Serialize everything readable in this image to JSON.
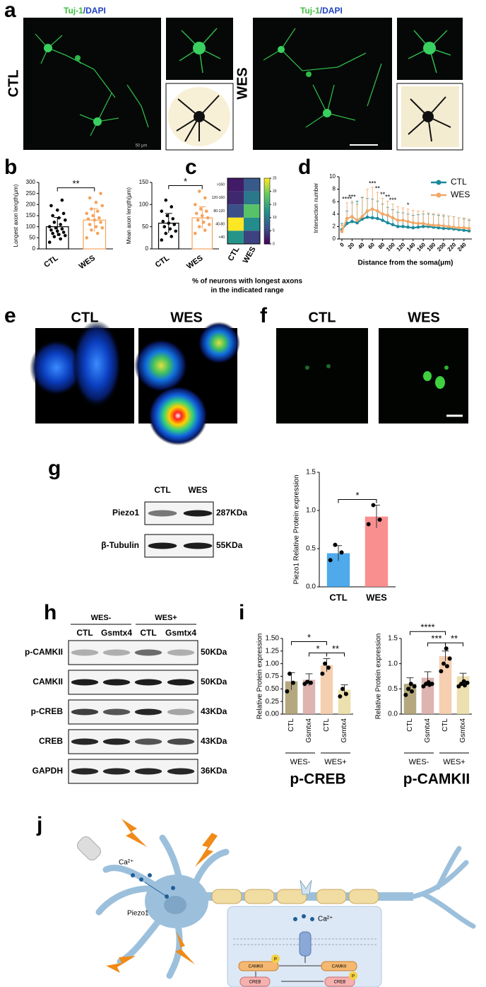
{
  "panel_labels": [
    "a",
    "b",
    "c",
    "d",
    "e",
    "f",
    "g",
    "h",
    "i",
    "j"
  ],
  "a": {
    "panels": [
      {
        "label": "CTL",
        "stain": [
          "Tuj-1",
          "/DAPI"
        ],
        "scale": "50 μm"
      },
      {
        "label": "WES",
        "stain": [
          "Tuj-1",
          "/DAPI"
        ]
      }
    ]
  },
  "e": {
    "labels": [
      "CTL",
      "WES"
    ]
  },
  "f": {
    "labels": [
      "CTL",
      "WES"
    ]
  },
  "g": {
    "lanes": [
      "CTL",
      "WES"
    ],
    "rows": [
      {
        "name": "Piezo1",
        "size": "287KDa"
      },
      {
        "name": "β-Tubulin",
        "size": "55KDa"
      }
    ]
  },
  "h": {
    "groups": [
      "WES-",
      "WES+"
    ],
    "lanes": [
      "CTL",
      "Gsmtx4",
      "CTL",
      "Gsmtx4"
    ],
    "rows": [
      {
        "name": "p-CAMKII",
        "size": "50KDa"
      },
      {
        "name": "CAMKII",
        "size": "50KDa"
      },
      {
        "name": "p-CREB",
        "size": "43KDa"
      },
      {
        "name": "CREB",
        "size": "43KDa"
      },
      {
        "name": "GAPDH",
        "size": "36KDa"
      }
    ]
  },
  "j": {
    "ca_out": "Ca²⁺",
    "piezo": "Piezo1",
    "ca_in": "Ca²⁺",
    "camkii_p": "CAMKII",
    "p1": "P",
    "camkii": "CAMKII",
    "creb": "CREB",
    "creb_p": "CREB",
    "p2": "P"
  },
  "chart_data": [
    {
      "type": "bar",
      "ylabel": "Longest axon length(μm)",
      "categories": [
        "CTL",
        "WES"
      ],
      "values": [
        100,
        130
      ],
      "errors": [
        42,
        52
      ],
      "points": [
        [
          30,
          45,
          55,
          60,
          65,
          70,
          75,
          80,
          85,
          90,
          95,
          100,
          110,
          120,
          130,
          140,
          150,
          160,
          175,
          195,
          220
        ],
        [
          50,
          70,
          85,
          95,
          100,
          110,
          120,
          130,
          135,
          140,
          150,
          160,
          170,
          180,
          195,
          210,
          230,
          250
        ]
      ],
      "colors": [
        "#000000",
        "#f5a35c"
      ],
      "filled": false,
      "xtick_rotation": 35,
      "ylim": [
        0,
        300
      ],
      "yticks": [
        0,
        50,
        100,
        150,
        200,
        250,
        300
      ],
      "comparisons": [
        {
          "between": [
            0,
            1
          ],
          "label": "**"
        }
      ]
    },
    {
      "type": "bar",
      "ylabel": "Mean axon length(μm)",
      "categories": [
        "CTL",
        "WES"
      ],
      "values": [
        58,
        70
      ],
      "errors": [
        22,
        25
      ],
      "points": [
        [
          20,
          28,
          35,
          40,
          45,
          50,
          55,
          58,
          62,
          68,
          75,
          85,
          95,
          110
        ],
        [
          35,
          42,
          50,
          55,
          60,
          65,
          70,
          75,
          80,
          85,
          90,
          100,
          115,
          130
        ]
      ],
      "colors": [
        "#000000",
        "#f5a35c"
      ],
      "filled": false,
      "xtick_rotation": 35,
      "ylim": [
        0,
        150
      ],
      "yticks": [
        0,
        50,
        100,
        150
      ],
      "comparisons": [
        {
          "between": [
            0,
            1
          ],
          "label": "*"
        }
      ]
    },
    {
      "type": "heatmap",
      "rows": [
        ">160",
        "120-160",
        "80-120",
        "40-80",
        "<40"
      ],
      "columns": [
        "CTL",
        "WES"
      ],
      "values": [
        [
          2,
          7
        ],
        [
          3,
          10
        ],
        [
          6,
          18
        ],
        [
          25,
          12
        ],
        [
          13,
          5
        ]
      ],
      "colormap": "viridis",
      "clim": [
        0,
        25
      ],
      "cticks": [
        0,
        5,
        10,
        15,
        20,
        25
      ],
      "xlabel": [
        "% of neurons with longest axons",
        "in the indicated range"
      ]
    },
    {
      "type": "line",
      "xlabel": "Distance from the soma(μm)",
      "ylabel": "Intersection number",
      "x": [
        0,
        10,
        20,
        30,
        40,
        50,
        60,
        70,
        80,
        90,
        100,
        110,
        120,
        130,
        140,
        150,
        160,
        170,
        180,
        190,
        200,
        210,
        220,
        230,
        240,
        250
      ],
      "series": [
        {
          "name": "CTL",
          "color": "#1b8a9c",
          "values": [
            1.5,
            2.5,
            2.8,
            2.6,
            3.2,
            3.5,
            3.4,
            3.3,
            3,
            2.6,
            2.3,
            2,
            2,
            1.9,
            1.8,
            1.9,
            2,
            2,
            1.9,
            1.8,
            1.7,
            1.7,
            1.6,
            1.5,
            1.4,
            1.3
          ],
          "errors": [
            1,
            2,
            3,
            3.5,
            3.5,
            3,
            3,
            2.8,
            2.6,
            2.5,
            2.4,
            2.3,
            2.2,
            2.1,
            2,
            2,
            2,
            2,
            2,
            2,
            2,
            2,
            2,
            1.9,
            1.8,
            1.7
          ]
        },
        {
          "name": "WES",
          "color": "#f0a868",
          "values": [
            1.2,
            3.3,
            3.6,
            3,
            3.6,
            4.5,
            4.8,
            4.5,
            4,
            3.8,
            3.4,
            3,
            3,
            2.8,
            2.6,
            2.5,
            2.5,
            2.3,
            2.2,
            2.2,
            2.1,
            2,
            1.9,
            1.8,
            1.8,
            1.7
          ],
          "errors": [
            1,
            2.5,
            2.5,
            2.5,
            3,
            3.5,
            3.5,
            3,
            2.5,
            2.3,
            2.2,
            2.2,
            2,
            2,
            2,
            2,
            2,
            1.9,
            1.9,
            1.8,
            1.8,
            1.7,
            1.7,
            1.6,
            1.6,
            1.5
          ]
        }
      ],
      "xlim": [
        0,
        250
      ],
      "xticks": [
        0,
        20,
        40,
        60,
        80,
        100,
        120,
        140,
        160,
        180,
        200,
        220,
        240
      ],
      "ylim": [
        0,
        10
      ],
      "yticks": [
        0,
        2,
        4,
        6,
        8,
        10
      ],
      "legend": "upper right",
      "annotations": [
        {
          "x": 10,
          "label": "****"
        },
        {
          "x": 20,
          "label": "***"
        },
        {
          "x": 60,
          "label": "***"
        },
        {
          "x": 70,
          "label": "**"
        },
        {
          "x": 80,
          "label": "**"
        },
        {
          "x": 90,
          "label": "**"
        },
        {
          "x": 100,
          "label": "***"
        },
        {
          "x": 130,
          "label": "*"
        }
      ]
    },
    {
      "type": "bar",
      "ylabel": "Piezo1 Relative Protein expression",
      "categories": [
        "CTL",
        "WES"
      ],
      "values": [
        0.44,
        0.92
      ],
      "errors": [
        0.1,
        0.15
      ],
      "points": [
        [
          0.35,
          0.45,
          0.55
        ],
        [
          0.82,
          0.88,
          1.07
        ]
      ],
      "colors": [
        "#2f9be8",
        "#f87b7b"
      ],
      "filled": true,
      "xtick_rotation": 0,
      "ylim": [
        0,
        1.5
      ],
      "yticks": [
        {
          "value": 0,
          "label": "0.0"
        },
        {
          "value": 0.5,
          "label": "0.5"
        },
        {
          "value": 1,
          "label": "1.0"
        },
        {
          "value": 1.5,
          "label": "1.5"
        }
      ],
      "comparisons": [
        {
          "between": [
            0,
            1
          ],
          "label": "*"
        }
      ]
    },
    {
      "type": "bar",
      "title": "p-CREB",
      "ylabel": "Relative Protein expression",
      "categories": [
        "CTL",
        "Gsmtx4",
        "CTL",
        "Gsmtx4"
      ],
      "groups": [
        "WES-",
        "WES+"
      ],
      "values": [
        0.65,
        0.68,
        0.97,
        0.48
      ],
      "errors": [
        0.17,
        0.12,
        0.13,
        0.1
      ],
      "points": [
        [
          0.45,
          0.62,
          0.8
        ],
        [
          0.6,
          0.62,
          0.64
        ],
        [
          0.8,
          0.92,
          1.0
        ],
        [
          0.35,
          0.4,
          0.5
        ]
      ],
      "colors": [
        "#a89968",
        "#d8a7a2",
        "#f3c7a2",
        "#e7dba0"
      ],
      "filled": true,
      "xtick_rotation": 90,
      "ylim": [
        0,
        1.5
      ],
      "yticks": [
        {
          "value": 0,
          "label": "0.00"
        },
        {
          "value": 0.25,
          "label": "0.25"
        },
        {
          "value": 0.5,
          "label": "0.50"
        },
        {
          "value": 0.75,
          "label": "0.75"
        },
        {
          "value": 1,
          "label": "1.00"
        },
        {
          "value": 1.25,
          "label": "1.25"
        },
        {
          "value": 1.5,
          "label": "1.50"
        }
      ],
      "comparisons": [
        {
          "between": [
            0,
            2
          ],
          "label": "*"
        },
        {
          "between": [
            1,
            2
          ],
          "label": "*"
        },
        {
          "between": [
            2,
            3
          ],
          "label": "**"
        }
      ]
    },
    {
      "type": "bar",
      "title": "p-CAMKII",
      "ylabel": "Relative Protein expression",
      "categories": [
        "CTL",
        "Gsmtx4",
        "CTL",
        "Gsmtx4"
      ],
      "groups": [
        "WES-",
        "WES+"
      ],
      "values": [
        0.6,
        0.72,
        1.15,
        0.75
      ],
      "errors": [
        0.12,
        0.12,
        0.1,
        0.06
      ],
      "points": [
        [
          0.38,
          0.45,
          0.5,
          0.55,
          0.6
        ],
        [
          0.55,
          0.58,
          0.6,
          0.6,
          0.63
        ],
        [
          0.85,
          0.95,
          1.0,
          1.1,
          1.3
        ],
        [
          0.55,
          0.57,
          0.6,
          0.62,
          0.65
        ]
      ],
      "colors": [
        "#a89968",
        "#d8a7a2",
        "#f3c7a2",
        "#e7dba0"
      ],
      "filled": true,
      "xtick_rotation": 90,
      "ylim": [
        0,
        1.5
      ],
      "yticks": [
        {
          "value": 0,
          "label": "0.0"
        },
        {
          "value": 0.5,
          "label": "0.5"
        },
        {
          "value": 1,
          "label": "1.0"
        },
        {
          "value": 1.5,
          "label": "1.5"
        }
      ],
      "comparisons": [
        {
          "between": [
            0,
            2
          ],
          "label": "****"
        },
        {
          "between": [
            1,
            2
          ],
          "label": "***"
        },
        {
          "between": [
            2,
            3
          ],
          "label": "**"
        }
      ]
    }
  ]
}
